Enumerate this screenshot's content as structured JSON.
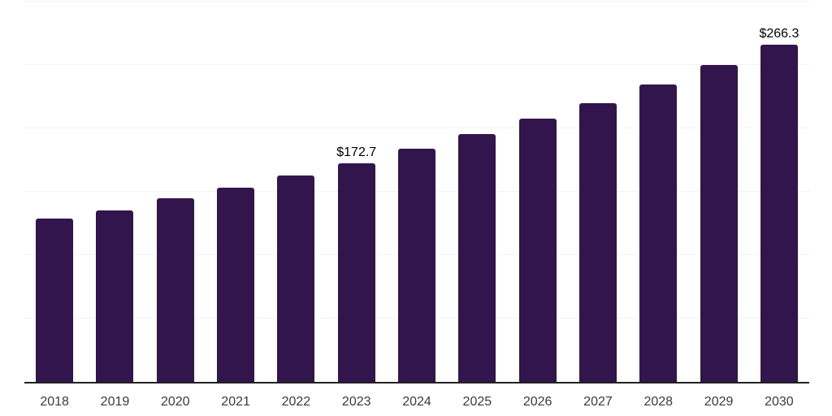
{
  "chart_data": {
    "type": "bar",
    "title": "",
    "xlabel": "",
    "ylabel": "",
    "categories": [
      "2018",
      "2019",
      "2020",
      "2021",
      "2022",
      "2023",
      "2024",
      "2025",
      "2026",
      "2027",
      "2028",
      "2029",
      "2030"
    ],
    "values": [
      128.7,
      135.5,
      144.6,
      153.1,
      162.6,
      172.7,
      183.7,
      195.5,
      207.7,
      219.9,
      234.4,
      249.9,
      266.3
    ],
    "data_labels": [
      "",
      "",
      "",
      "",
      "",
      "$172.7",
      "",
      "",
      "",
      "",
      "",
      "",
      "$266.3"
    ],
    "ylim": [
      0,
      300
    ],
    "gridline_step": 50,
    "grid": true,
    "legend": false,
    "y_tick_labels_visible": false,
    "colors": {
      "bar": "#33154d",
      "axis_line": "#222222",
      "gridline": "#f2f2f2",
      "tick_label": "#3b3b3b",
      "data_label": "#000000",
      "background": "#ffffff"
    }
  }
}
